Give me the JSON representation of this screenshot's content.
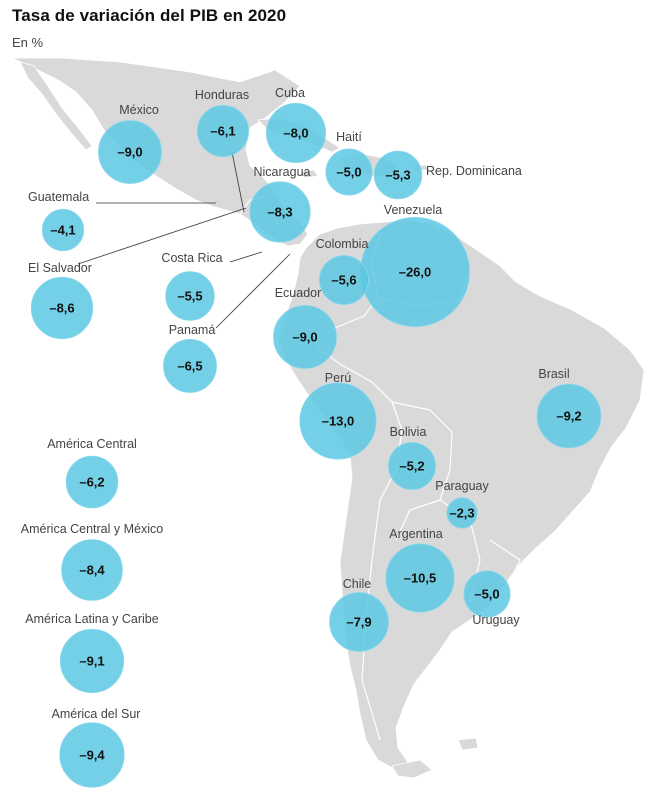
{
  "title": "Tasa de variación del PIB en 2020",
  "subtitle": "En %",
  "colors": {
    "bubble": "#5cc8e3",
    "bubble_stroke": "#8ad8ec",
    "land": "#d9d9d9"
  },
  "chart_data": {
    "type": "proportional-symbol-map",
    "title": "Tasa de variación del PIB en 2020",
    "unit": "En %",
    "countries": [
      {
        "name": "México",
        "value": "–9,0"
      },
      {
        "name": "Honduras",
        "value": "–6,1"
      },
      {
        "name": "Cuba",
        "value": "–8,0"
      },
      {
        "name": "Haití",
        "value": "–5,0"
      },
      {
        "name": "Rep. Dominicana",
        "value": "–5,3"
      },
      {
        "name": "Nicaragua",
        "value": "–8,3"
      },
      {
        "name": "Guatemala",
        "value": "–4,1"
      },
      {
        "name": "El Salvador",
        "value": "–8,6"
      },
      {
        "name": "Costa Rica",
        "value": "–5,5"
      },
      {
        "name": "Panamá",
        "value": "–6,5"
      },
      {
        "name": "Colombia",
        "value": "–5,6"
      },
      {
        "name": "Venezuela",
        "value": "–26,0"
      },
      {
        "name": "Ecuador",
        "value": "–9,0"
      },
      {
        "name": "Perú",
        "value": "–13,0"
      },
      {
        "name": "Brasil",
        "value": "–9,2"
      },
      {
        "name": "Bolivia",
        "value": "–5,2"
      },
      {
        "name": "Paraguay",
        "value": "–2,3"
      },
      {
        "name": "Argentina",
        "value": "–10,5"
      },
      {
        "name": "Chile",
        "value": "–7,9"
      },
      {
        "name": "Uruguay",
        "value": "–5,0"
      }
    ],
    "aggregates": [
      {
        "name": "América Central",
        "value": "–6,2"
      },
      {
        "name": "América Central y México",
        "value": "–8,4"
      },
      {
        "name": "América Latina y Caribe",
        "value": "–9,1"
      },
      {
        "name": "América del Sur",
        "value": "–9,4"
      }
    ]
  }
}
